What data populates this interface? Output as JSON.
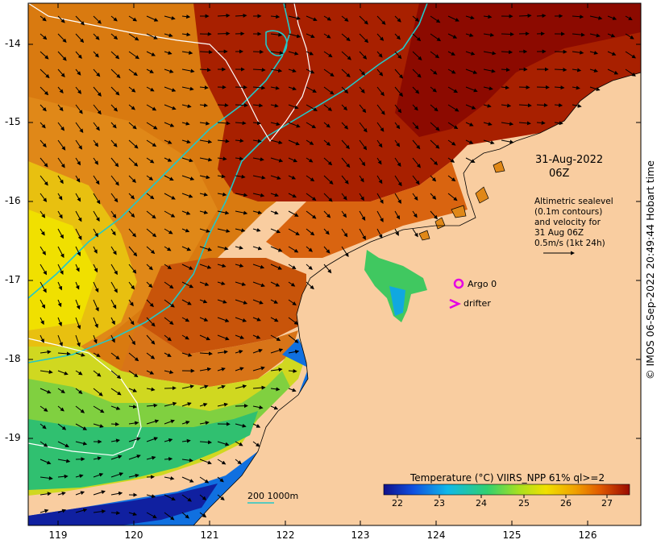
{
  "map": {
    "date_label": "31-Aug-2022",
    "time_label": "06Z",
    "legend_lines": [
      "Altimetric sealevel",
      "(0.1m contours)",
      "and velocity for",
      "31 Aug 06Z",
      "0.5m/s (1kt 24h)"
    ],
    "argo_label": "Argo 0",
    "drifter_label": "drifter",
    "depth_scale_label": "200  1000m",
    "credit": "© IMOS 06-Sep-2022 20:49:44 Hobart time",
    "lat_ticks": [
      "-14",
      "-15",
      "-16",
      "-17",
      "-18",
      "-19"
    ],
    "lon_ticks": [
      "119",
      "120",
      "121",
      "122",
      "123",
      "124",
      "125",
      "126"
    ]
  },
  "colorbar": {
    "title": "Temperature (°C) VIIRS_NPP 61% ql>=2",
    "ticks": [
      "22",
      "23",
      "24",
      "25",
      "26",
      "27"
    ],
    "range": [
      21.4,
      27.6
    ]
  },
  "colors": {
    "land": "#f9cda0",
    "argo": "#e400e4",
    "drifter": "#e400e4",
    "contour": "#ffffff",
    "isobath": "#22c8c8"
  }
}
